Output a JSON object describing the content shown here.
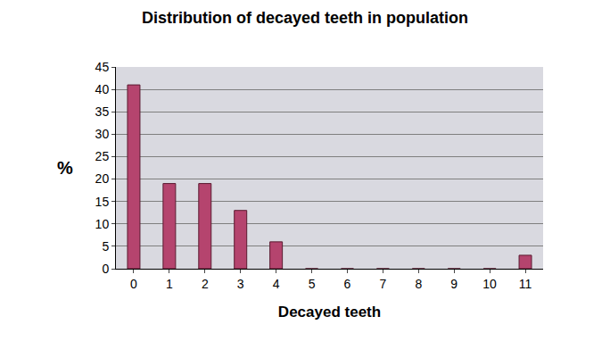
{
  "chart_data": {
    "type": "bar",
    "title": "Distribution of decayed teeth in population",
    "x_label": "Decayed teeth",
    "y_label": "%",
    "categories": [
      "0",
      "1",
      "2",
      "3",
      "4",
      "5",
      "6",
      "7",
      "8",
      "9",
      "10",
      "11"
    ],
    "values": [
      41,
      19,
      19,
      13,
      6,
      0,
      0,
      0,
      0,
      0,
      0,
      3
    ],
    "color": "#b5446e",
    "ylim": [
      0,
      45
    ],
    "yticks": [
      0,
      5,
      10,
      15,
      20,
      25,
      30,
      35,
      40,
      45
    ],
    "grid": true
  }
}
